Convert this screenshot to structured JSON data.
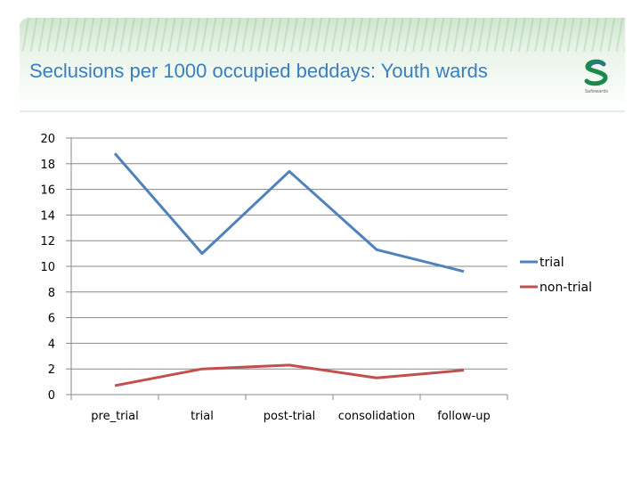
{
  "header": {
    "title": "Seclusions per 1000 occupied beddays: Youth wards",
    "logo_text": "Safewards"
  },
  "chart_data": {
    "type": "line",
    "title": "Seclusions per 1000 occupied beddays: Youth wards",
    "categories": [
      "pre_trial",
      "trial",
      "post-trial",
      "consolidation",
      "follow-up"
    ],
    "series": [
      {
        "name": "trial",
        "color": "#4f81bd",
        "values": [
          18.8,
          11.0,
          17.4,
          11.3,
          9.6
        ]
      },
      {
        "name": "non-trial",
        "color": "#c0504d",
        "values": [
          0.7,
          2.0,
          2.3,
          1.3,
          1.9
        ]
      }
    ],
    "ylim": [
      0,
      20
    ],
    "yticks": [
      0,
      2,
      4,
      6,
      8,
      10,
      12,
      14,
      16,
      18,
      20
    ],
    "grid": true,
    "legend": "right"
  }
}
